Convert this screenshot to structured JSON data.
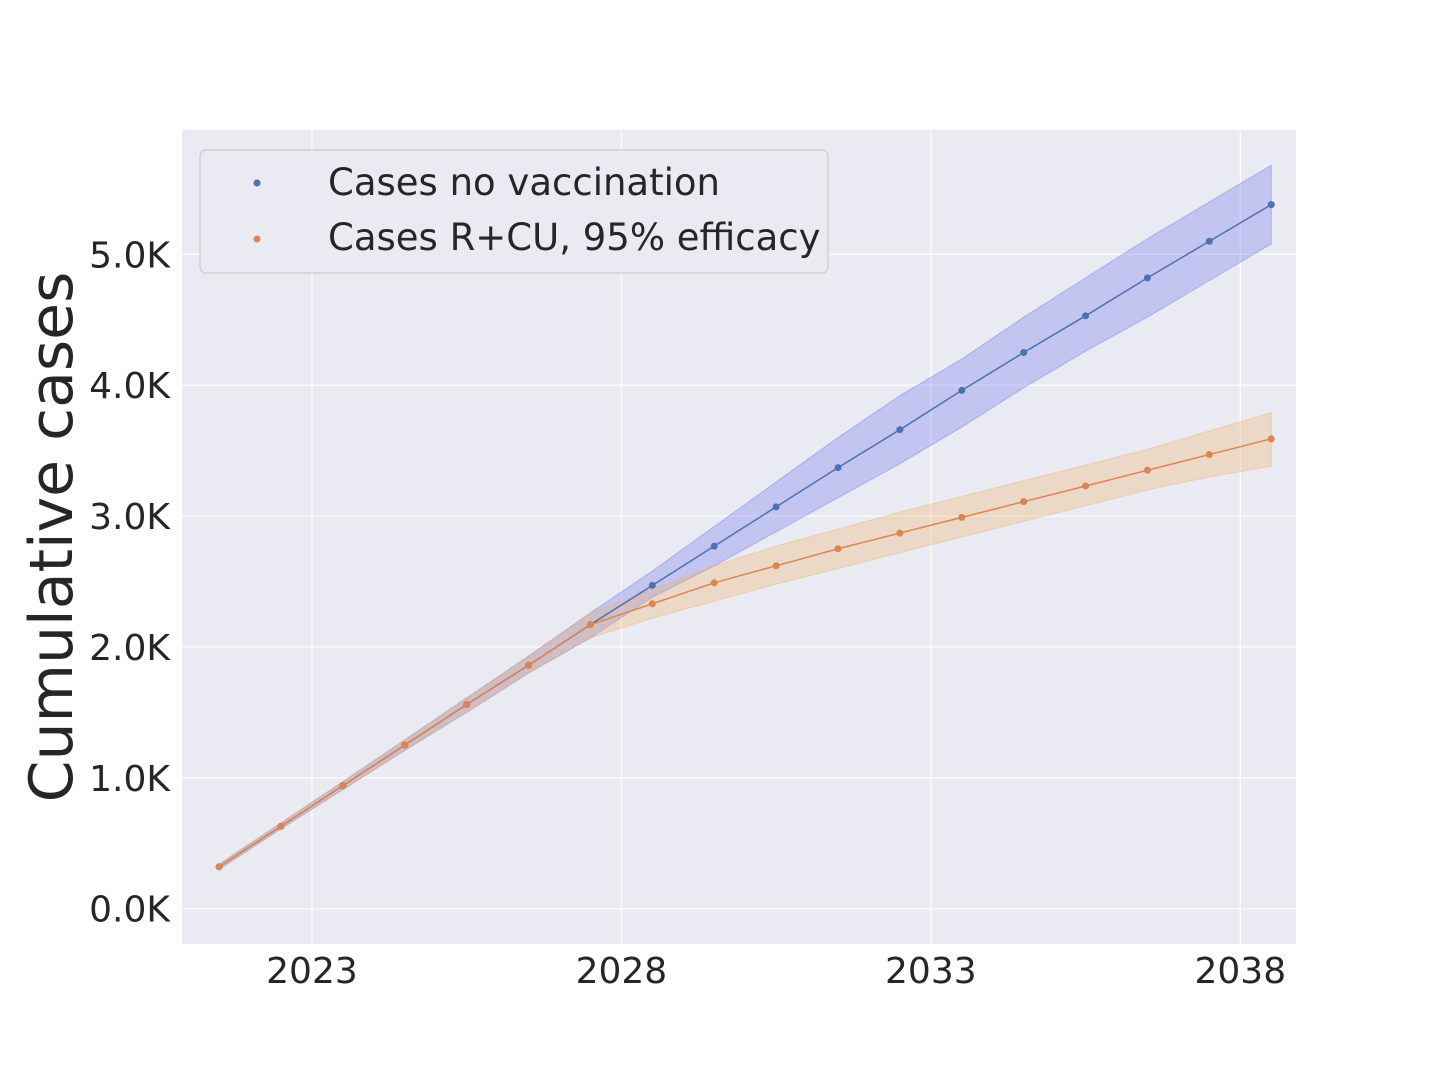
{
  "chart_data": {
    "type": "line",
    "title": "",
    "xlabel": "",
    "ylabel": "Cumulative cases",
    "x_tick_labels": [
      "2023",
      "2028",
      "2033",
      "2038"
    ],
    "y_tick_labels": [
      "0.0K",
      "1.0K",
      "2.0K",
      "3.0K",
      "4.0K",
      "5.0K"
    ],
    "xlim": [
      2020.9,
      2038.9
    ],
    "ylim": [
      -270,
      5950
    ],
    "grid": true,
    "legend_position": "upper-left",
    "x": [
      2021.5,
      2022.5,
      2023.5,
      2024.5,
      2025.5,
      2026.5,
      2027.5,
      2028.5,
      2029.5,
      2030.5,
      2031.5,
      2032.5,
      2033.5,
      2034.5,
      2035.5,
      2036.5,
      2037.5,
      2038.5
    ],
    "series": [
      {
        "name": "Cases no vaccination",
        "color": "#4c72b0",
        "band_color": "#6a6ff0",
        "values": [
          320,
          630,
          940,
          1250,
          1560,
          1860,
          2170,
          2470,
          2770,
          3070,
          3370,
          3660,
          3960,
          4250,
          4530,
          4820,
          5100,
          5380
        ],
        "lower": [
          300,
          610,
          910,
          1210,
          1500,
          1800,
          2070,
          2380,
          2620,
          2880,
          3140,
          3400,
          3680,
          3980,
          4260,
          4520,
          4800,
          5080
        ],
        "upper": [
          340,
          655,
          970,
          1290,
          1610,
          1930,
          2260,
          2580,
          2920,
          3260,
          3600,
          3920,
          4200,
          4520,
          4820,
          5120,
          5400,
          5680
        ]
      },
      {
        "name": "Cases R+CU, 95% efficacy",
        "color": "#dd8452",
        "band_color": "#f0b060",
        "values": [
          320,
          630,
          940,
          1250,
          1560,
          1860,
          2170,
          2330,
          2490,
          2620,
          2750,
          2870,
          2990,
          3110,
          3230,
          3350,
          3470,
          3590
        ],
        "lower": [
          300,
          610,
          910,
          1210,
          1500,
          1800,
          2070,
          2220,
          2350,
          2480,
          2600,
          2720,
          2840,
          2960,
          3080,
          3200,
          3300,
          3380
        ],
        "upper": [
          340,
          655,
          970,
          1290,
          1610,
          1930,
          2260,
          2440,
          2620,
          2770,
          2900,
          3030,
          3150,
          3270,
          3390,
          3510,
          3650,
          3790
        ]
      }
    ]
  }
}
